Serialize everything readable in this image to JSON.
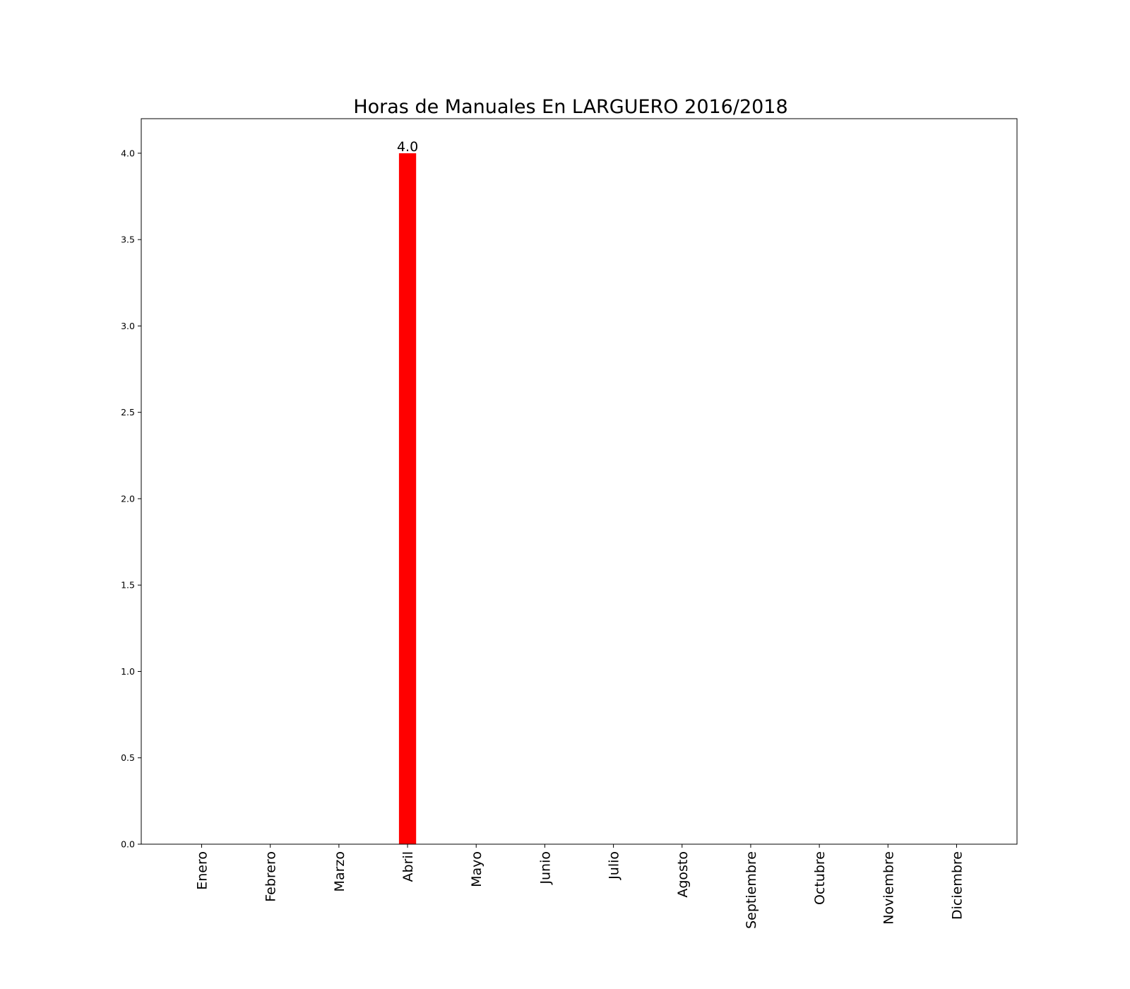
{
  "chart_data": {
    "type": "bar",
    "title": "Horas de Manuales En LARGUERO 2016/2018",
    "xlabel": "",
    "ylabel": "",
    "categories": [
      "Enero",
      "Febrero",
      "Marzo",
      "Abril",
      "Mayo",
      "Junio",
      "Julio",
      "Agosto",
      "Septiembre",
      "Octubre",
      "Noviembre",
      "Diciembre"
    ],
    "values": [
      0,
      0,
      0,
      4.0,
      0,
      0,
      0,
      0,
      0,
      0,
      0,
      0
    ],
    "data_labels": [
      "",
      "",
      "",
      "4.0",
      "",
      "",
      "",
      "",
      "",
      "",
      "",
      ""
    ],
    "ylim": [
      0,
      4.2
    ],
    "yticks": [
      "0.0",
      "0.5",
      "1.0",
      "1.5",
      "2.0",
      "2.5",
      "3.0",
      "3.5",
      "4.0"
    ],
    "grid": false,
    "bar_color": "#ff0000"
  }
}
